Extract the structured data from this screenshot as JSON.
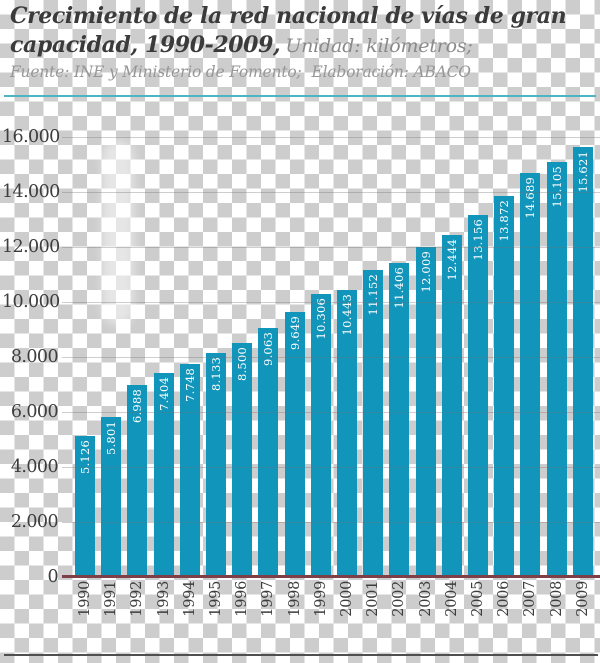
{
  "header": {
    "title_line1": "Crecimiento de la red nacional de vías de gran",
    "title_line2": "capacidad, 1990-2009,",
    "unit_note": "Unidad: kilómetros;",
    "source_note": "Fuente: INE y Ministerio de Fomento;",
    "elaboration_note": "Elaboración: ABACO"
  },
  "colors": {
    "bar": "#1295bb",
    "baseline": "#7c4046",
    "divider": "#4fb4c2",
    "title_text": "#3b3b3b",
    "muted_text": "#8a8a8a",
    "grid": "#6e6e6e"
  },
  "chart_data": {
    "type": "bar",
    "title": "Crecimiento de la red nacional de vías de gran capacidad, 1990-2009",
    "xlabel": "",
    "ylabel": "kilómetros",
    "ylim": [
      0,
      16000
    ],
    "grid": true,
    "categories": [
      "1990",
      "1991",
      "1992",
      "1993",
      "1994",
      "1995",
      "1996",
      "1997",
      "1998",
      "1999",
      "2000",
      "2001",
      "2002",
      "2003",
      "2004",
      "2005",
      "2006",
      "2007",
      "2008",
      "2009"
    ],
    "values": [
      5126,
      5801,
      6988,
      7404,
      7748,
      8133,
      8500,
      9063,
      9649,
      10306,
      10443,
      11152,
      11406,
      12009,
      12444,
      13156,
      13872,
      14689,
      15105,
      15621
    ],
    "value_labels": [
      "5.126",
      "5.801",
      "6.988",
      "7.404",
      "7.748",
      "8.133",
      "8.500",
      "9.063",
      "9.649",
      "10.306",
      "10.443",
      "11.152",
      "11.406",
      "12.009",
      "12.444",
      "13.156",
      "13.872",
      "14.689",
      "15.105",
      "15.621"
    ],
    "yticks": [
      {
        "label": "0",
        "value": 0
      },
      {
        "label": "2.000",
        "value": 2000
      },
      {
        "label": "4.000",
        "value": 4000
      },
      {
        "label": "6.000",
        "value": 6000
      },
      {
        "label": "8.000",
        "value": 8000
      },
      {
        "label": "10.000",
        "value": 10000
      },
      {
        "label": "12.000",
        "value": 12000
      },
      {
        "label": "14.000",
        "value": 14000
      },
      {
        "label": "16.000",
        "value": 16000
      }
    ]
  }
}
